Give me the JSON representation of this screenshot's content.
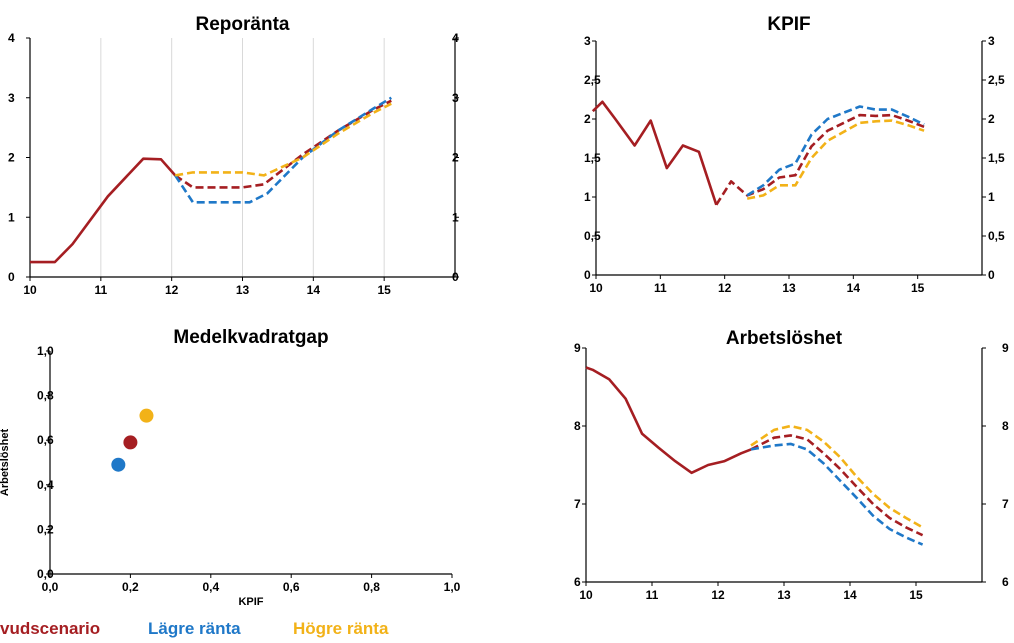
{
  "colors": {
    "huvudscenario": "#a51e22",
    "lagre": "#1f78c8",
    "hogre": "#f2b218",
    "axis": "#000000",
    "grid": "#d9d9d9"
  },
  "legend": {
    "huvudscenario": "vudscenario",
    "lagre": "Lägre ränta",
    "hogre": "Högre ränta"
  },
  "chart_data": [
    {
      "id": "repo",
      "type": "line",
      "title": "Reporänta",
      "xlim": [
        10,
        16
      ],
      "ylim": [
        0,
        4
      ],
      "x_ticks": [
        "10",
        "11",
        "12",
        "13",
        "14",
        "15"
      ],
      "y_ticks": [
        "0",
        "1",
        "2",
        "3",
        "4"
      ],
      "y_ticks_right": [
        "0",
        "1",
        "2",
        "3",
        "4"
      ],
      "grid": "vertical",
      "series": [
        {
          "key": "huvud_solid",
          "color_key": "huvudscenario",
          "dashed": false,
          "points": [
            [
              10.0,
              0.25
            ],
            [
              10.35,
              0.25
            ],
            [
              10.6,
              0.55
            ],
            [
              11.1,
              1.35
            ],
            [
              11.6,
              1.98
            ],
            [
              11.85,
              1.97
            ],
            [
              12.05,
              1.7
            ]
          ]
        },
        {
          "key": "huvud_dash",
          "color_key": "huvudscenario",
          "dashed": true,
          "points": [
            [
              12.05,
              1.7
            ],
            [
              12.3,
              1.5
            ],
            [
              12.6,
              1.5
            ],
            [
              13.0,
              1.5
            ],
            [
              13.3,
              1.55
            ],
            [
              13.85,
              2.05
            ],
            [
              14.35,
              2.45
            ],
            [
              14.85,
              2.8
            ],
            [
              15.1,
              2.95
            ]
          ]
        },
        {
          "key": "lagre",
          "color_key": "lagre",
          "dashed": true,
          "points": [
            [
              12.05,
              1.7
            ],
            [
              12.3,
              1.25
            ],
            [
              12.6,
              1.25
            ],
            [
              13.1,
              1.25
            ],
            [
              13.35,
              1.4
            ],
            [
              13.85,
              2.0
            ],
            [
              14.35,
              2.45
            ],
            [
              14.85,
              2.82
            ],
            [
              15.1,
              3.0
            ]
          ]
        },
        {
          "key": "hogre",
          "color_key": "hogre",
          "dashed": true,
          "points": [
            [
              12.05,
              1.7
            ],
            [
              12.3,
              1.75
            ],
            [
              12.6,
              1.75
            ],
            [
              13.0,
              1.75
            ],
            [
              13.3,
              1.7
            ],
            [
              13.85,
              2.0
            ],
            [
              14.35,
              2.4
            ],
            [
              14.85,
              2.75
            ],
            [
              15.1,
              2.9
            ]
          ]
        }
      ]
    },
    {
      "id": "kpif",
      "type": "line",
      "title": "KPIF",
      "xlim": [
        10,
        16
      ],
      "ylim": [
        0,
        3
      ],
      "x_ticks": [
        "10",
        "11",
        "12",
        "13",
        "14",
        "15"
      ],
      "y_ticks": [
        "0",
        "0,5",
        "1",
        "1,5",
        "2",
        "2,5",
        "3"
      ],
      "y_ticks_right": [
        "0",
        "0,5",
        "1",
        "1,5",
        "2",
        "2,5",
        "3"
      ],
      "grid": "none",
      "series": [
        {
          "key": "huvud_solid",
          "color_key": "huvudscenario",
          "dashed": false,
          "points": [
            [
              9.95,
              2.1
            ],
            [
              10.1,
              2.22
            ],
            [
              10.3,
              2.0
            ],
            [
              10.6,
              1.66
            ],
            [
              10.85,
              1.98
            ],
            [
              11.1,
              1.37
            ],
            [
              11.35,
              1.66
            ],
            [
              11.6,
              1.58
            ],
            [
              11.87,
              0.9
            ]
          ]
        },
        {
          "key": "huvud_dash",
          "color_key": "huvudscenario",
          "dashed": true,
          "points": [
            [
              11.87,
              0.9
            ],
            [
              12.1,
              1.2
            ],
            [
              12.35,
              1.02
            ],
            [
              12.6,
              1.1
            ],
            [
              12.85,
              1.25
            ],
            [
              13.1,
              1.28
            ],
            [
              13.35,
              1.65
            ],
            [
              13.6,
              1.85
            ],
            [
              14.1,
              2.05
            ],
            [
              14.35,
              2.04
            ],
            [
              14.6,
              2.05
            ],
            [
              14.85,
              1.98
            ],
            [
              15.1,
              1.9
            ]
          ]
        },
        {
          "key": "lagre",
          "color_key": "lagre",
          "dashed": true,
          "points": [
            [
              12.35,
              1.02
            ],
            [
              12.6,
              1.15
            ],
            [
              12.85,
              1.35
            ],
            [
              13.1,
              1.43
            ],
            [
              13.35,
              1.8
            ],
            [
              13.6,
              2.0
            ],
            [
              14.1,
              2.16
            ],
            [
              14.35,
              2.12
            ],
            [
              14.6,
              2.12
            ],
            [
              14.85,
              2.03
            ],
            [
              15.1,
              1.93
            ]
          ]
        },
        {
          "key": "hogre",
          "color_key": "hogre",
          "dashed": true,
          "points": [
            [
              12.35,
              0.98
            ],
            [
              12.6,
              1.02
            ],
            [
              12.85,
              1.15
            ],
            [
              13.1,
              1.15
            ],
            [
              13.35,
              1.5
            ],
            [
              13.6,
              1.72
            ],
            [
              14.1,
              1.95
            ],
            [
              14.35,
              1.97
            ],
            [
              14.6,
              1.98
            ],
            [
              14.85,
              1.92
            ],
            [
              15.1,
              1.85
            ]
          ]
        }
      ]
    },
    {
      "id": "medel",
      "type": "scatter",
      "title": "Medelkvadratgap",
      "xlabel": "KPIF",
      "ylabel": "Arbetslöshet",
      "xlim": [
        0,
        1
      ],
      "ylim": [
        0,
        1
      ],
      "x_ticks": [
        "0,0",
        "0,2",
        "0,4",
        "0,6",
        "0,8",
        "1,0"
      ],
      "y_ticks": [
        "0,0",
        "0,2",
        "0,4",
        "0,6",
        "0,8",
        "1,0"
      ],
      "points": [
        {
          "name": "Huvudscenario",
          "color_key": "huvudscenario",
          "x": 0.2,
          "y": 0.59
        },
        {
          "name": "Lägre ränta",
          "color_key": "lagre",
          "x": 0.17,
          "y": 0.49
        },
        {
          "name": "Högre ränta",
          "color_key": "hogre",
          "x": 0.24,
          "y": 0.71
        }
      ]
    },
    {
      "id": "arb",
      "type": "line",
      "title": "Arbetslöshet",
      "xlim": [
        10,
        16
      ],
      "ylim": [
        6,
        9
      ],
      "x_ticks": [
        "10",
        "11",
        "12",
        "13",
        "14",
        "15"
      ],
      "y_ticks": [
        "6",
        "7",
        "8",
        "9"
      ],
      "y_ticks_right": [
        "6",
        "7",
        "8",
        "9"
      ],
      "grid": "none",
      "series": [
        {
          "key": "huvud_solid",
          "color_key": "huvudscenario",
          "dashed": false,
          "points": [
            [
              10.0,
              8.75
            ],
            [
              10.1,
              8.72
            ],
            [
              10.35,
              8.6
            ],
            [
              10.6,
              8.35
            ],
            [
              10.85,
              7.9
            ],
            [
              11.1,
              7.72
            ],
            [
              11.35,
              7.55
            ],
            [
              11.6,
              7.4
            ],
            [
              11.85,
              7.5
            ],
            [
              12.1,
              7.55
            ],
            [
              12.35,
              7.65
            ],
            [
              12.5,
              7.7
            ]
          ]
        },
        {
          "key": "huvud_dash",
          "color_key": "huvudscenario",
          "dashed": true,
          "points": [
            [
              12.5,
              7.7
            ],
            [
              12.85,
              7.85
            ],
            [
              13.1,
              7.88
            ],
            [
              13.35,
              7.83
            ],
            [
              13.6,
              7.65
            ],
            [
              13.85,
              7.45
            ],
            [
              14.1,
              7.22
            ],
            [
              14.35,
              7.0
            ],
            [
              14.6,
              6.82
            ],
            [
              14.85,
              6.7
            ],
            [
              15.1,
              6.6
            ]
          ]
        },
        {
          "key": "lagre",
          "color_key": "lagre",
          "dashed": true,
          "points": [
            [
              12.5,
              7.7
            ],
            [
              12.85,
              7.75
            ],
            [
              13.1,
              7.77
            ],
            [
              13.35,
              7.7
            ],
            [
              13.6,
              7.52
            ],
            [
              13.85,
              7.3
            ],
            [
              14.1,
              7.08
            ],
            [
              14.35,
              6.85
            ],
            [
              14.6,
              6.68
            ],
            [
              14.85,
              6.57
            ],
            [
              15.1,
              6.48
            ]
          ]
        },
        {
          "key": "hogre",
          "color_key": "hogre",
          "dashed": true,
          "points": [
            [
              12.5,
              7.75
            ],
            [
              12.85,
              7.95
            ],
            [
              13.1,
              8.0
            ],
            [
              13.35,
              7.95
            ],
            [
              13.6,
              7.8
            ],
            [
              13.85,
              7.6
            ],
            [
              14.1,
              7.35
            ],
            [
              14.35,
              7.13
            ],
            [
              14.6,
              6.95
            ],
            [
              14.85,
              6.82
            ],
            [
              15.1,
              6.7
            ]
          ]
        }
      ]
    }
  ]
}
